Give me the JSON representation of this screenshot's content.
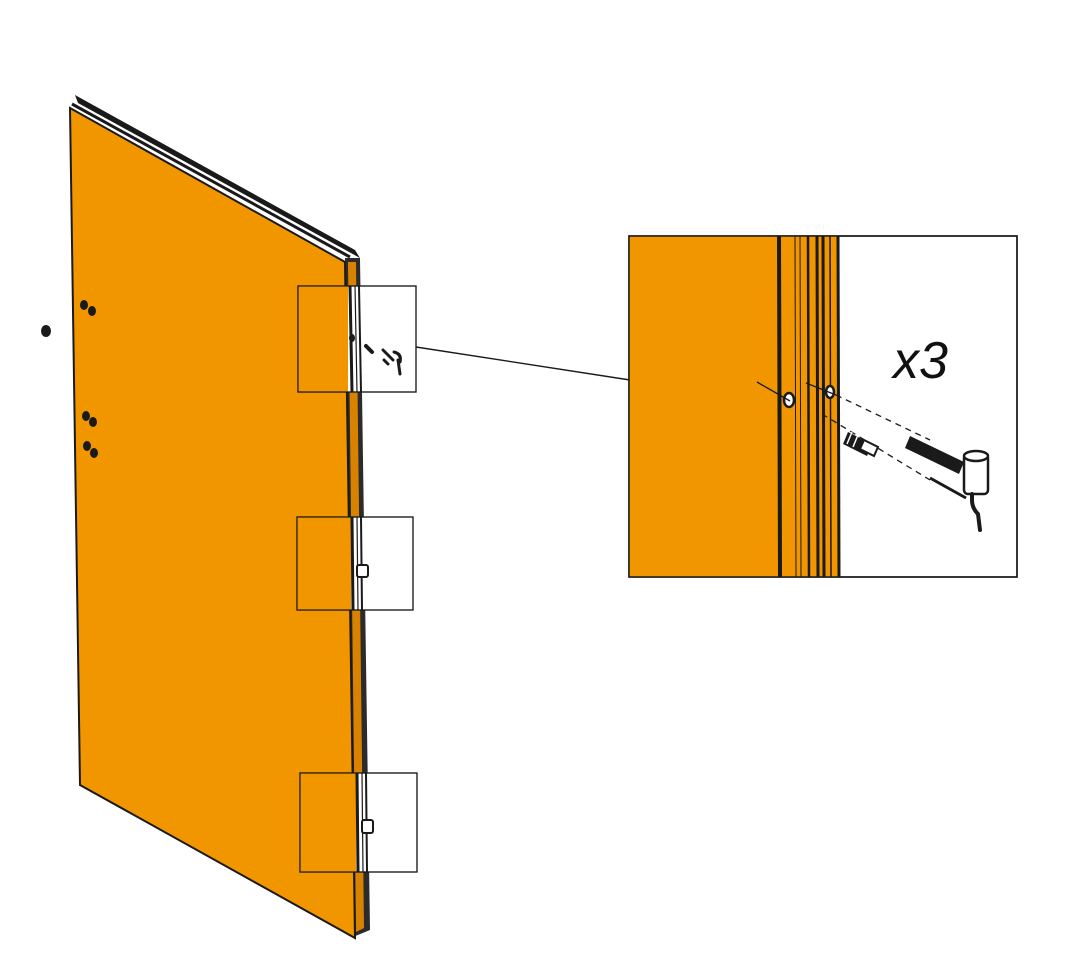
{
  "diagram": {
    "colors": {
      "panel": "#F29600",
      "outline": "#1a1a1a",
      "background": "#ffffff"
    },
    "detail_callout": {
      "quantity_label": "x3"
    },
    "parts": {
      "door_panel": "door-panel",
      "hinge_pins": 3,
      "cover_caps_on_face": 3
    }
  }
}
